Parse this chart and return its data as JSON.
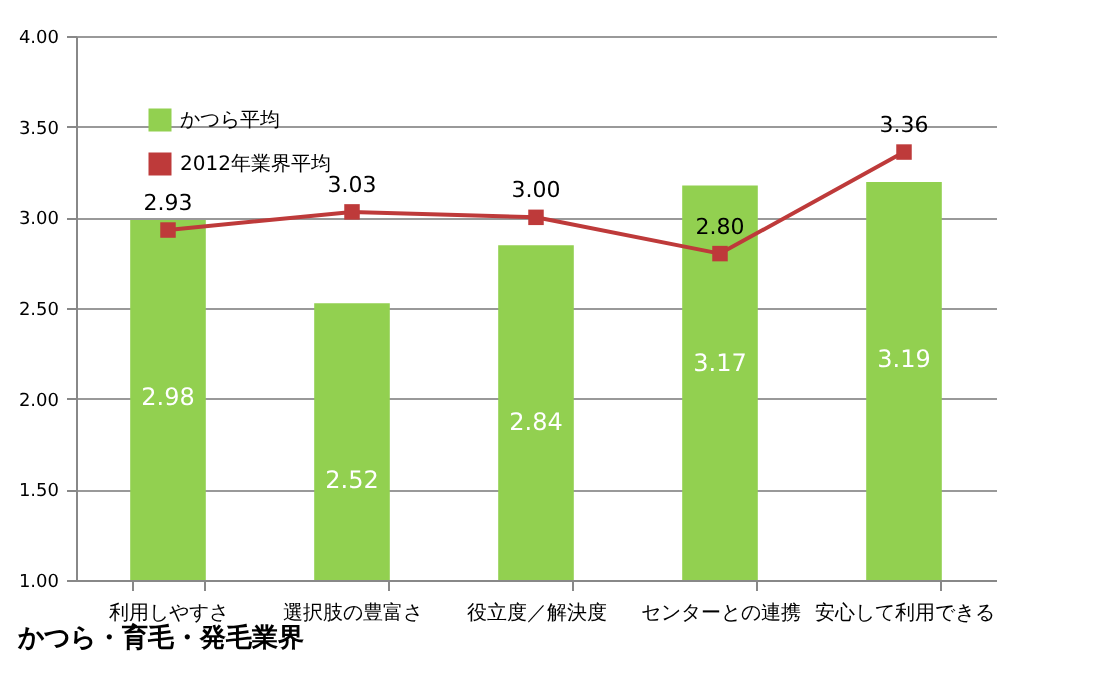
{
  "chart_data": {
    "type": "bar",
    "categories": [
      "利用しやすさ",
      "選択肢の豊富さ",
      "役立度／解決度",
      "センターとの連携",
      "安心して利用できる"
    ],
    "series": [
      {
        "name": "かつら平均",
        "color": "#92d050",
        "values": [
          2.98,
          2.52,
          2.84,
          3.17,
          3.19
        ],
        "value_labels": [
          "2.98",
          "2.52",
          "2.84",
          "3.17",
          "3.19"
        ]
      },
      {
        "name": "2012年業界平均",
        "type": "line",
        "color": "#be3a3a",
        "values": [
          2.93,
          3.03,
          3.0,
          2.8,
          3.36
        ],
        "value_labels": [
          "2.93",
          "3.03",
          "3.00",
          "2.80",
          "3.36"
        ]
      }
    ],
    "ylim": [
      1,
      4
    ],
    "yticks": [
      {
        "value": 1,
        "label": "1.00"
      },
      {
        "value": 1.5,
        "label": "1.50"
      },
      {
        "value": 2,
        "label": "2.00"
      },
      {
        "value": 2.5,
        "label": "2.50"
      },
      {
        "value": 3,
        "label": "3.00"
      },
      {
        "value": 3.5,
        "label": "3.50"
      },
      {
        "value": 4,
        "label": "4.00"
      }
    ],
    "grid": "y",
    "legend": "top left",
    "marker": "square",
    "line_style": "solid",
    "annotations": [
      "かつら・育毛・発毛業界"
    ]
  }
}
